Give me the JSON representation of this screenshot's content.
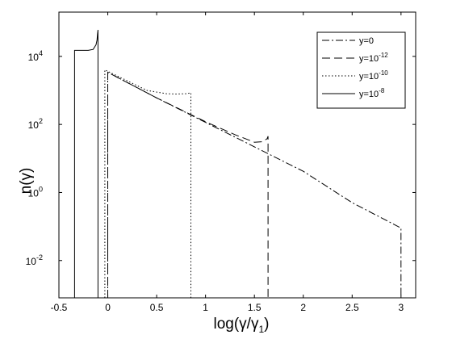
{
  "chart_data": {
    "type": "line",
    "xlabel": "log(γ/γ₁)",
    "ylabel": "n(γ)",
    "yscale": "log",
    "xlim": [
      -0.5,
      3.15
    ],
    "ylim": [
      0.0008,
      200000
    ],
    "grid": false,
    "legend_position": "top-right",
    "x_ticks": [
      {
        "value": -0.5,
        "label": "-0.5"
      },
      {
        "value": 0,
        "label": "0"
      },
      {
        "value": 0.5,
        "label": "0.5"
      },
      {
        "value": 1,
        "label": "1"
      },
      {
        "value": 1.5,
        "label": "1.5"
      },
      {
        "value": 2,
        "label": "2"
      },
      {
        "value": 2.5,
        "label": "2.5"
      },
      {
        "value": 3,
        "label": "3"
      }
    ],
    "y_ticks": [
      {
        "value": 0.01,
        "base": "10",
        "exp": "-2"
      },
      {
        "value": 1,
        "base": "10",
        "exp": "0"
      },
      {
        "value": 100,
        "base": "10",
        "exp": "2"
      },
      {
        "value": 10000,
        "base": "10",
        "exp": "4"
      }
    ],
    "series": [
      {
        "name": "y=0",
        "name_base": "y=0",
        "name_exp": "",
        "dash": "9,3,2,3",
        "x": [
          0.0,
          0.0,
          0.5,
          1.0,
          1.5,
          2.0,
          2.5,
          3.0,
          3.0
        ],
        "y": [
          0.0008,
          3400,
          600,
          115,
          22,
          4.2,
          0.5,
          0.09,
          0.0008
        ]
      },
      {
        "name": "y=10-12",
        "name_base": "y=10",
        "name_exp": "-12",
        "dash": "10,5",
        "x": [
          0.0,
          0.0,
          0.5,
          1.0,
          1.3,
          1.5,
          1.58,
          1.63,
          1.64,
          1.64
        ],
        "y": [
          0.0008,
          3400,
          600,
          120,
          50,
          30,
          31,
          38,
          45,
          0.0008
        ]
      },
      {
        "name": "y=10-10",
        "name_base": "y=10",
        "name_exp": "-10",
        "dash": "1.5,2.5",
        "x": [
          -0.03,
          -0.03,
          0.2,
          0.4,
          0.6,
          0.7,
          0.8,
          0.85,
          0.85
        ],
        "y": [
          0.0008,
          4000,
          1900,
          1000,
          800,
          780,
          800,
          850,
          0.0008
        ]
      },
      {
        "name": "y=10-8",
        "name_base": "y=10",
        "name_exp": "-8",
        "dash": "",
        "x": [
          -0.34,
          -0.34,
          -0.3,
          -0.25,
          -0.2,
          -0.15,
          -0.12,
          -0.11,
          -0.105,
          -0.1,
          -0.1
        ],
        "y": [
          0.0008,
          15000,
          15000,
          15000,
          15000,
          16000,
          22000,
          30000,
          45000,
          60000,
          0.0008
        ]
      }
    ]
  }
}
